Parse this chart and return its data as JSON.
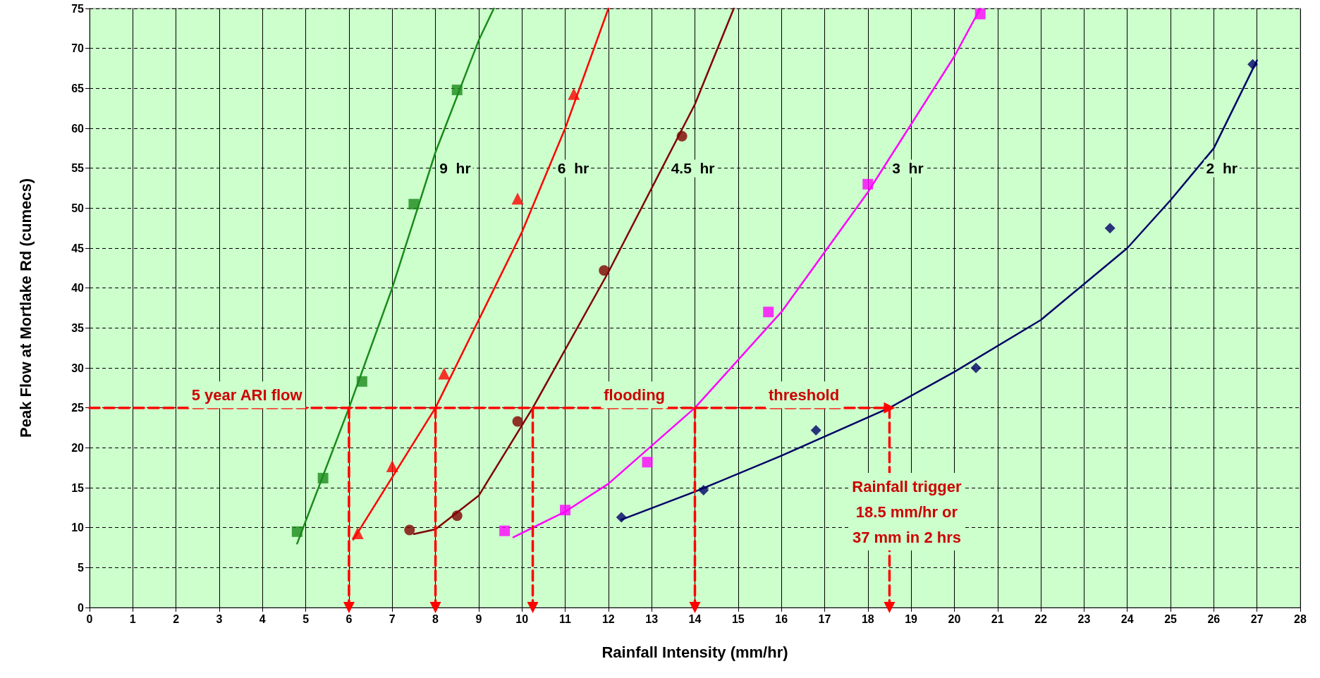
{
  "chart_data": {
    "type": "scatter",
    "xlabel": "Rainfall Intensity (mm/hr)",
    "ylabel": "Peak Flow at Mortlake Rd (cumecs)",
    "xlim": [
      0,
      28
    ],
    "xticks": [
      0,
      1,
      2,
      3,
      4,
      5,
      6,
      7,
      8,
      9,
      10,
      11,
      12,
      13,
      14,
      15,
      16,
      17,
      18,
      19,
      20,
      21,
      22,
      23,
      24,
      25,
      26,
      27,
      28
    ],
    "ylim": [
      0,
      75
    ],
    "yticks": [
      0,
      5,
      10,
      15,
      20,
      25,
      30,
      35,
      40,
      45,
      50,
      55,
      60,
      65,
      70,
      75
    ],
    "grid": true,
    "legend": false,
    "series": [
      {
        "marker": "square",
        "color": "#1a8a1a",
        "x": [
          4.8,
          5.4,
          6.3,
          7.5,
          8.5
        ],
        "values": [
          9.5,
          16.2,
          28.3,
          50.5,
          64.8
        ]
      },
      {
        "name": "9  hr",
        "type": "line",
        "marker": "none",
        "line_style": "solid",
        "color": "#1a8a1a",
        "x": [
          4.8,
          6,
          7,
          8,
          9,
          9.35
        ],
        "values": [
          8,
          25,
          40,
          57,
          71,
          75
        ]
      },
      {
        "marker": "triangle",
        "color": "#ff0000",
        "x": [
          6.2,
          7,
          8.2,
          9.9,
          11.2
        ],
        "values": [
          9.3,
          17.7,
          29.3,
          51.2,
          64.3
        ]
      },
      {
        "name": "6  hr",
        "type": "line",
        "marker": "none",
        "line_style": "solid",
        "color": "#ff0000",
        "x": [
          6.1,
          8,
          10,
          11,
          12
        ],
        "values": [
          8.5,
          25,
          47,
          60,
          75
        ]
      },
      {
        "marker": "circle",
        "color": "#800000",
        "x": [
          7.4,
          8.5,
          9.9,
          11.9,
          13.7
        ],
        "values": [
          9.7,
          11.5,
          23.3,
          42.2,
          59
        ]
      },
      {
        "name": "4.5  hr",
        "type": "line",
        "marker": "none",
        "line_style": "solid",
        "color": "#800000",
        "x": [
          7.5,
          8,
          9,
          10.25,
          12,
          14,
          14.9
        ],
        "values": [
          9.2,
          9.8,
          14,
          25,
          42,
          63,
          75
        ]
      },
      {
        "marker": "square",
        "color": "#ff00ff",
        "x": [
          9.6,
          11,
          12.9,
          15.7,
          18,
          20.6
        ],
        "values": [
          9.6,
          12.2,
          18.2,
          37,
          53,
          74.3
        ]
      },
      {
        "name": "3  hr",
        "type": "line",
        "marker": "none",
        "line_style": "solid",
        "color": "#ff00ff",
        "x": [
          9.8,
          11,
          12,
          14,
          16,
          18,
          20,
          20.6
        ],
        "values": [
          8.8,
          12,
          15.5,
          25,
          37,
          52,
          69,
          75
        ]
      },
      {
        "marker": "diamond",
        "color": "#000066",
        "x": [
          12.3,
          14.2,
          16.8,
          20.5,
          23.6,
          26.9
        ],
        "values": [
          11.3,
          14.7,
          22.2,
          30,
          47.5,
          68
        ]
      },
      {
        "name": "2  hr",
        "type": "line",
        "marker": "none",
        "line_style": "solid",
        "color": "#000066",
        "x": [
          12.3,
          14,
          16,
          18.5,
          20,
          22,
          24,
          25,
          26,
          27
        ],
        "values": [
          11,
          14.5,
          19,
          25,
          29.5,
          36,
          45,
          51,
          57.5,
          68.5
        ]
      },
      {
        "type": "line",
        "marker": "triangle",
        "line_style": "dashed",
        "color": "#ff0000",
        "x": [
          0,
          18.5
        ],
        "values": [
          25,
          25
        ]
      },
      {
        "type": "line",
        "marker": "triangle",
        "line_style": "dashed",
        "color": "#ff0000",
        "x": [
          6,
          6
        ],
        "values": [
          25,
          0
        ]
      },
      {
        "type": "line",
        "marker": "triangle",
        "line_style": "dashed",
        "color": "#ff0000",
        "x": [
          8,
          8
        ],
        "values": [
          25,
          0
        ]
      },
      {
        "type": "line",
        "marker": "triangle",
        "line_style": "dashed",
        "color": "#ff0000",
        "x": [
          10.25,
          10.25
        ],
        "values": [
          25,
          0
        ]
      },
      {
        "type": "line",
        "marker": "triangle",
        "line_style": "dashed",
        "color": "#ff0000",
        "x": [
          14,
          14
        ],
        "values": [
          25,
          0
        ]
      },
      {
        "type": "line",
        "marker": "triangle",
        "line_style": "dashed",
        "color": "#ff0000",
        "x": [
          18.5,
          18.5
        ],
        "values": [
          25,
          0
        ]
      }
    ],
    "annotations": [
      "5 year ARI flow",
      "flooding",
      "threshold",
      "Rainfall trigger\n18.5 mm/hr or\n37 mm in 2 hrs"
    ]
  }
}
